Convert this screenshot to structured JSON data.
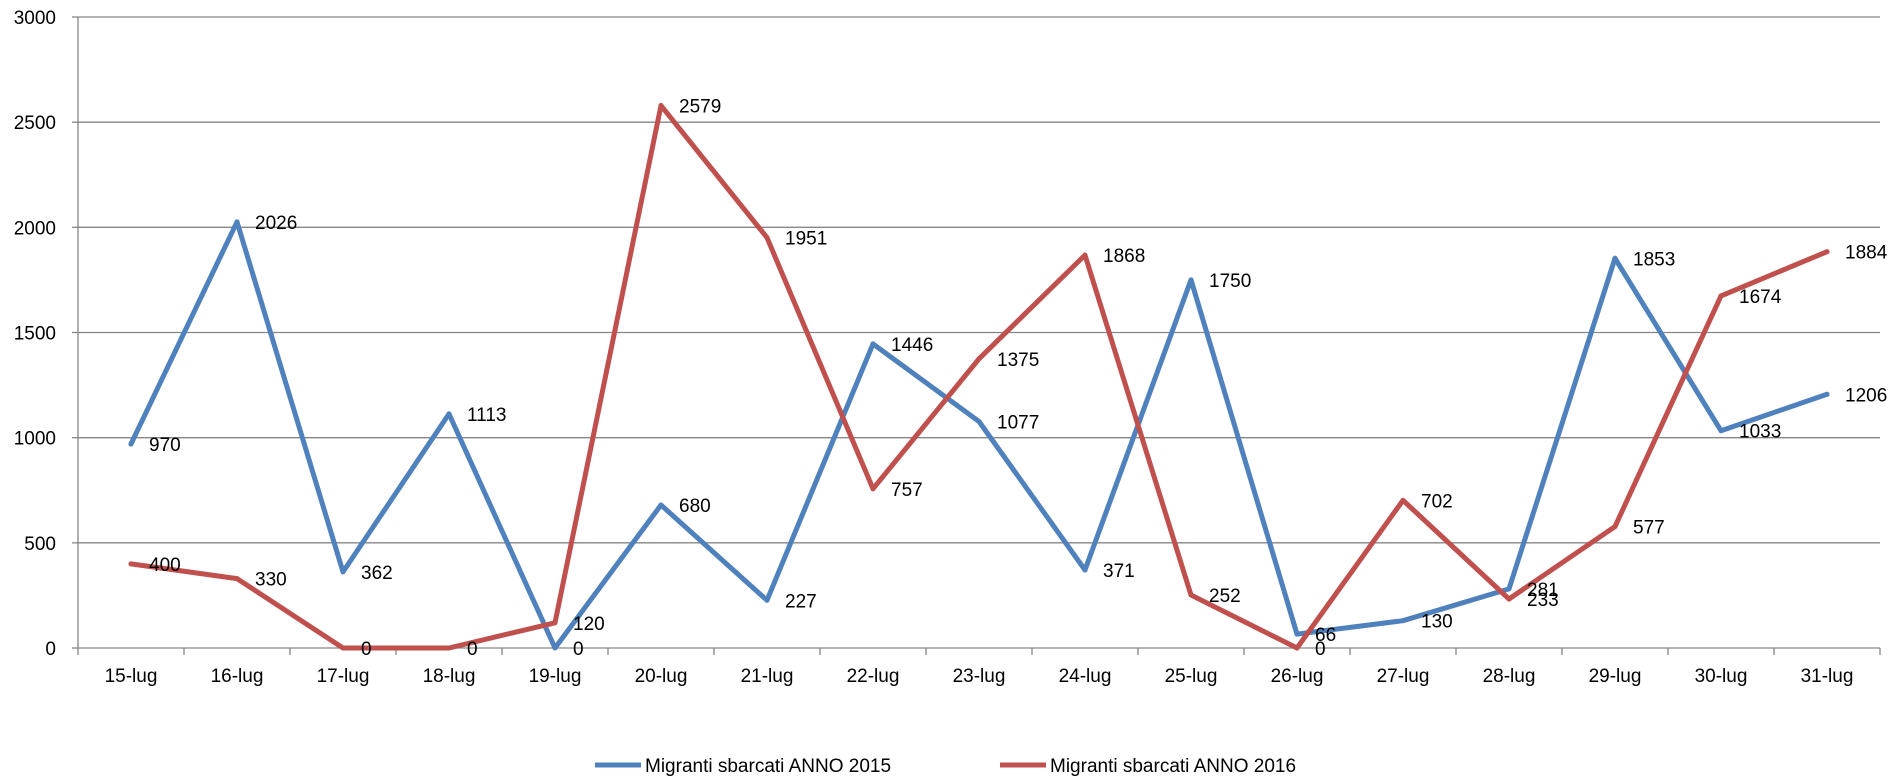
{
  "chart_data": {
    "type": "line",
    "categories": [
      "15-lug",
      "16-lug",
      "17-lug",
      "18-lug",
      "19-lug",
      "20-lug",
      "21-lug",
      "22-lug",
      "23-lug",
      "24-lug",
      "25-lug",
      "26-lug",
      "27-lug",
      "28-lug",
      "29-lug",
      "30-lug",
      "31-lug"
    ],
    "series": [
      {
        "name": "Migranti sbarcati ANNO 2015",
        "color": "#4f81bd",
        "values": [
          970,
          2026,
          362,
          1113,
          0,
          680,
          227,
          1446,
          1077,
          371,
          1750,
          66,
          130,
          281,
          1853,
          1033,
          1206
        ]
      },
      {
        "name": "Migranti sbarcati ANNO 2016",
        "color": "#c0504d",
        "values": [
          400,
          330,
          0,
          0,
          120,
          2579,
          1951,
          757,
          1375,
          1868,
          252,
          0,
          702,
          233,
          577,
          1674,
          1884
        ]
      }
    ],
    "ylim": [
      0,
      3000
    ],
    "yticks": [
      0,
      500,
      1000,
      1500,
      2000,
      2500,
      3000
    ],
    "grid": true,
    "legend": "bottom",
    "title": "",
    "xlabel": "",
    "ylabel": ""
  }
}
